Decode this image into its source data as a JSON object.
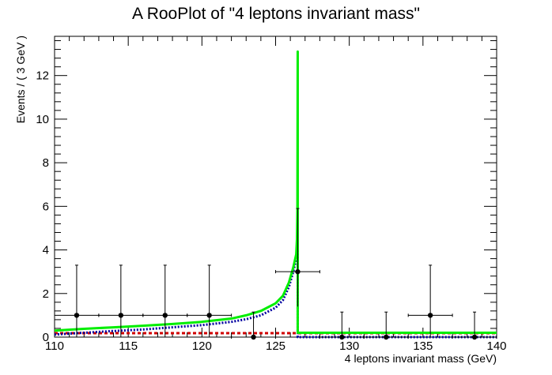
{
  "chart_data": {
    "type": "line",
    "title": "A RooPlot of \"4 leptons invariant mass\"",
    "xlabel": "4 leptons invariant mass (GeV)",
    "ylabel": "Events / ( 3 GeV )",
    "xlim": [
      110,
      140
    ],
    "ylim": [
      0,
      13.8
    ],
    "x_ticks": [
      "110",
      "115",
      "120",
      "125",
      "130",
      "135",
      "140"
    ],
    "y_ticks": [
      "0",
      "2",
      "4",
      "6",
      "8",
      "10",
      "12"
    ],
    "grid": false,
    "legend": "none",
    "colors": {
      "total": "#00ee00",
      "background": "#d00000",
      "signal": "#0000a0",
      "data": "#000000"
    },
    "data_points": [
      {
        "x": 111.5,
        "y": 1,
        "xerr": 1.5,
        "yerr_low": 1,
        "yerr_high": 2.3
      },
      {
        "x": 114.5,
        "y": 1,
        "xerr": 1.5,
        "yerr_low": 1,
        "yerr_high": 2.3
      },
      {
        "x": 117.5,
        "y": 1,
        "xerr": 1.5,
        "yerr_low": 1,
        "yerr_high": 2.3
      },
      {
        "x": 120.5,
        "y": 1,
        "xerr": 1.5,
        "yerr_low": 1,
        "yerr_high": 2.3
      },
      {
        "x": 123.5,
        "y": 0,
        "xerr": 1.5,
        "yerr_low": 0,
        "yerr_high": 1.15
      },
      {
        "x": 126.5,
        "y": 3,
        "xerr": 1.5,
        "yerr_low": 1.6,
        "yerr_high": 2.9
      },
      {
        "x": 129.5,
        "y": 0,
        "xerr": 1.5,
        "yerr_low": 0,
        "yerr_high": 1.15
      },
      {
        "x": 132.5,
        "y": 0,
        "xerr": 1.5,
        "yerr_low": 0,
        "yerr_high": 1.15
      },
      {
        "x": 135.5,
        "y": 1,
        "xerr": 1.5,
        "yerr_low": 1,
        "yerr_high": 2.3
      },
      {
        "x": 138.5,
        "y": 0,
        "xerr": 1.5,
        "yerr_low": 0,
        "yerr_high": 1.15
      }
    ],
    "series": [
      {
        "style": "dashed",
        "x": [
          110,
          140
        ],
        "y": [
          0.18,
          0.18
        ]
      },
      {
        "style": "dotted",
        "x": [
          110,
          112,
          114,
          116,
          118,
          120,
          122,
          123,
          124,
          125,
          125.5,
          125.9,
          126.2,
          126.4,
          126.5,
          126.5,
          140
        ],
        "y": [
          0.12,
          0.2,
          0.28,
          0.35,
          0.45,
          0.55,
          0.7,
          0.82,
          1.0,
          1.35,
          1.7,
          2.3,
          3.0,
          3.6,
          4.0,
          0,
          0
        ]
      },
      {
        "style": "solid",
        "x": [
          110,
          112,
          114,
          116,
          118,
          120,
          122,
          123,
          124,
          125,
          125.5,
          125.9,
          126.2,
          126.4,
          126.45,
          126.48,
          126.5,
          126.5,
          140
        ],
        "y": [
          0.3,
          0.38,
          0.45,
          0.52,
          0.6,
          0.7,
          0.85,
          1.0,
          1.2,
          1.55,
          1.9,
          2.5,
          3.2,
          3.8,
          4.5,
          5.9,
          13.1,
          0.2,
          0.2
        ]
      }
    ]
  }
}
